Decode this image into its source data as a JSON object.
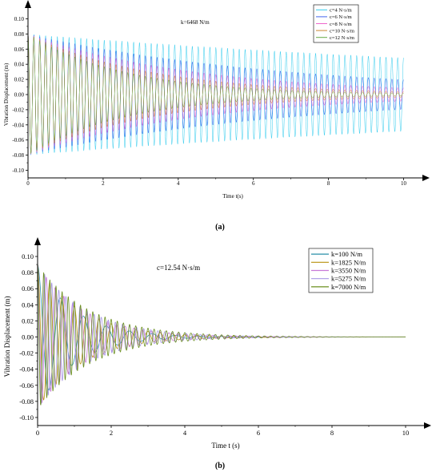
{
  "chart_data": [
    {
      "type": "line",
      "panel_label": "(a)",
      "annotation": "k=6468 N/m",
      "xlabel": "Time t(s)",
      "ylabel": "Vibration Displacement (m)",
      "xlim": [
        0,
        10.5
      ],
      "ylim": [
        -0.11,
        0.11
      ],
      "xticks": [
        "0",
        "2",
        "4",
        "6",
        "8",
        "10"
      ],
      "yticks": [
        "0.10",
        "0.08",
        "0.06",
        "0.04",
        "0.02",
        "0.00",
        "-0.02",
        "-0.04",
        "-0.06",
        "-0.08",
        "-0.10"
      ],
      "legend_position": "top-right",
      "frequency_hz": 6.4,
      "series": [
        {
          "name": "c=4 N·s/m",
          "color": "#33ccee",
          "amplitude": 0.08,
          "decay_rate": 0.05
        },
        {
          "name": "c=6 N·s/m",
          "color": "#4466ee",
          "amplitude": 0.08,
          "decay_rate": 0.14
        },
        {
          "name": "c=8 N·s/m",
          "color": "#ee66cc",
          "amplitude": 0.08,
          "decay_rate": 0.22
        },
        {
          "name": "c=10 N·s/m",
          "color": "#cc8833",
          "amplitude": 0.08,
          "decay_rate": 0.3
        },
        {
          "name": "c=12 N·s/m",
          "color": "#66aa44",
          "amplitude": 0.08,
          "decay_rate": 0.38
        }
      ]
    },
    {
      "type": "line",
      "panel_label": "(b)",
      "annotation": "c=12.54 N·s/m",
      "xlabel": "Time t (s)",
      "ylabel": "Vibration Displacement (m)",
      "xlim": [
        0,
        10.5
      ],
      "ylim": [
        -0.11,
        0.11
      ],
      "xticks": [
        "0",
        "2",
        "4",
        "6",
        "8",
        "10"
      ],
      "yticks": [
        "0.10",
        "0.08",
        "0.06",
        "0.04",
        "0.02",
        "0.00",
        "-0.02",
        "-0.04",
        "-0.06",
        "-0.08",
        "-0.10"
      ],
      "legend_position": "top-right",
      "series": [
        {
          "name": "k=100 N/m",
          "color": "#2a8fa8",
          "amplitude": 0.09,
          "frequency_hz": 1.6,
          "decay_rate": 1.0
        },
        {
          "name": "k=1825 N/m",
          "color": "#b8900e",
          "amplitude": 0.09,
          "frequency_hz": 3.0,
          "decay_rate": 0.85
        },
        {
          "name": "k=3550 N/m",
          "color": "#c87ad8",
          "amplitude": 0.09,
          "frequency_hz": 4.2,
          "decay_rate": 0.8
        },
        {
          "name": "k=5275 N/m",
          "color": "#a99ae6",
          "amplitude": 0.09,
          "frequency_hz": 5.2,
          "decay_rate": 0.75
        },
        {
          "name": "k=7000 N/m",
          "color": "#6b8f1f",
          "amplitude": 0.09,
          "frequency_hz": 6.0,
          "decay_rate": 0.7
        }
      ]
    }
  ]
}
